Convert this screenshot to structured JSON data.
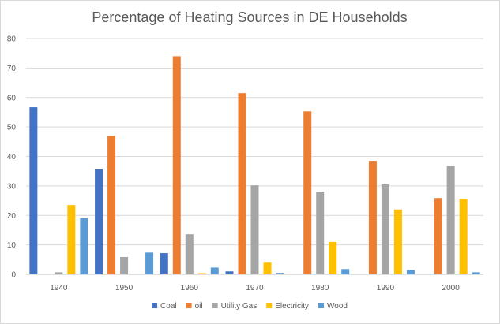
{
  "chart_data": {
    "type": "bar",
    "title": "Percentage of Heating Sources in DE Households",
    "xlabel": "",
    "ylabel": "",
    "categories": [
      "1940",
      "1950",
      "1960",
      "1970",
      "1980",
      "1990",
      "2000"
    ],
    "ylim": [
      0,
      80
    ],
    "yticks": [
      0,
      10,
      20,
      30,
      40,
      50,
      60,
      70,
      80
    ],
    "grid": true,
    "legend_position": "bottom",
    "series": [
      {
        "name": "Coal",
        "color": "#4472C4",
        "values": [
          56.7,
          35.6,
          7.2,
          1.0,
          0,
          0,
          0
        ]
      },
      {
        "name": "oil",
        "color": "#ED7D31",
        "values": [
          0,
          47.0,
          74.0,
          61.5,
          55.3,
          38.5,
          25.9
        ]
      },
      {
        "name": "Utility Gas",
        "color": "#A5A5A5",
        "values": [
          0.7,
          5.9,
          13.6,
          30.2,
          28.1,
          30.5,
          36.8
        ]
      },
      {
        "name": "Electricity",
        "color": "#FFC000",
        "values": [
          23.5,
          0,
          0.4,
          4.2,
          11.0,
          22.0,
          25.6
        ]
      },
      {
        "name": "Wood",
        "color": "#5B9BD5",
        "values": [
          19.0,
          7.4,
          2.3,
          0.5,
          1.8,
          1.5,
          0.7
        ]
      }
    ]
  }
}
